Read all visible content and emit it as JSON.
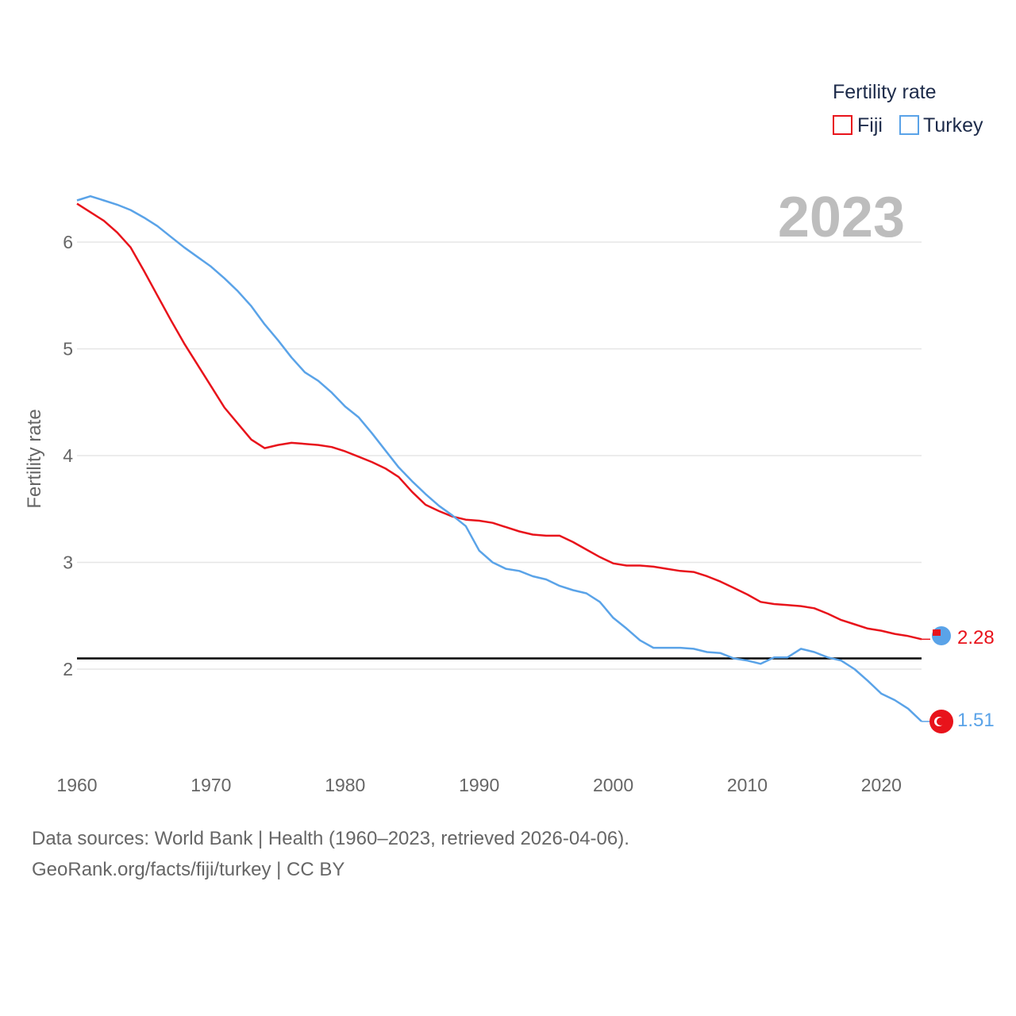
{
  "chart_data": {
    "type": "line",
    "title": "",
    "legend_title": "Fertility rate",
    "ylabel": "Fertility rate",
    "xlabel": "",
    "year_label": "2023",
    "xlim": [
      1960,
      2023
    ],
    "ylim": [
      1.2,
      6.75
    ],
    "x_ticks": [
      1960,
      1970,
      1980,
      1990,
      2000,
      2010,
      2020
    ],
    "y_ticks": [
      2,
      3,
      4,
      5,
      6
    ],
    "reference_line": 2.1,
    "x": [
      1960,
      1961,
      1962,
      1963,
      1964,
      1965,
      1966,
      1967,
      1968,
      1969,
      1970,
      1971,
      1972,
      1973,
      1974,
      1975,
      1976,
      1977,
      1978,
      1979,
      1980,
      1981,
      1982,
      1983,
      1984,
      1985,
      1986,
      1987,
      1988,
      1989,
      1990,
      1991,
      1992,
      1993,
      1994,
      1995,
      1996,
      1997,
      1998,
      1999,
      2000,
      2001,
      2002,
      2003,
      2004,
      2005,
      2006,
      2007,
      2008,
      2009,
      2010,
      2011,
      2012,
      2013,
      2014,
      2015,
      2016,
      2017,
      2018,
      2019,
      2020,
      2021,
      2022,
      2023
    ],
    "series": [
      {
        "name": "Fiji",
        "color": "#e8131b",
        "end_label": "2.28",
        "values": [
          6.36,
          6.28,
          6.2,
          6.09,
          5.95,
          5.73,
          5.5,
          5.27,
          5.05,
          4.85,
          4.65,
          4.45,
          4.3,
          4.15,
          4.07,
          4.1,
          4.12,
          4.11,
          4.1,
          4.08,
          4.04,
          3.99,
          3.94,
          3.88,
          3.8,
          3.66,
          3.54,
          3.48,
          3.43,
          3.4,
          3.39,
          3.37,
          3.33,
          3.29,
          3.26,
          3.25,
          3.25,
          3.19,
          3.12,
          3.05,
          2.99,
          2.97,
          2.97,
          2.96,
          2.94,
          2.92,
          2.91,
          2.87,
          2.82,
          2.76,
          2.7,
          2.63,
          2.61,
          2.6,
          2.59,
          2.57,
          2.52,
          2.46,
          2.42,
          2.38,
          2.36,
          2.33,
          2.31,
          2.28
        ]
      },
      {
        "name": "Turkey",
        "color": "#5aa3e8",
        "end_label": "1.51",
        "values": [
          6.39,
          6.43,
          6.39,
          6.35,
          6.3,
          6.23,
          6.15,
          6.05,
          5.95,
          5.86,
          5.77,
          5.66,
          5.54,
          5.4,
          5.23,
          5.08,
          4.92,
          4.78,
          4.7,
          4.59,
          4.46,
          4.36,
          4.21,
          4.05,
          3.89,
          3.76,
          3.64,
          3.53,
          3.44,
          3.34,
          3.11,
          3.0,
          2.94,
          2.92,
          2.87,
          2.84,
          2.78,
          2.74,
          2.71,
          2.63,
          2.48,
          2.38,
          2.27,
          2.2,
          2.2,
          2.2,
          2.19,
          2.16,
          2.15,
          2.1,
          2.08,
          2.05,
          2.11,
          2.11,
          2.19,
          2.16,
          2.11,
          2.08,
          2.0,
          1.89,
          1.77,
          1.71,
          1.63,
          1.51
        ]
      }
    ]
  },
  "footer": {
    "line1": "Data sources: World Bank | Health (1960–2023, retrieved 2026-04-06).",
    "line2": "GeoRank.org/facts/fiji/turkey | CC BY"
  }
}
